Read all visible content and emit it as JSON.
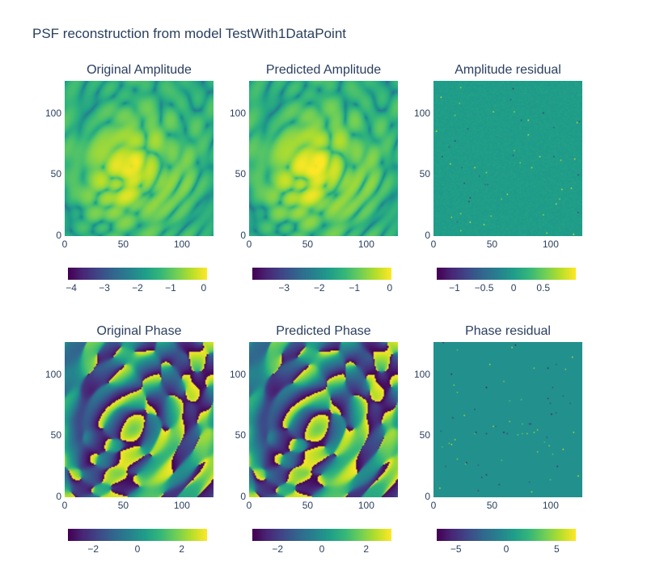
{
  "title": "PSF reconstruction from model TestWith1DataPoint",
  "colors": {
    "text": "#2a3f5f",
    "viridis": [
      "#440154",
      "#482878",
      "#3e4989",
      "#31688e",
      "#26828e",
      "#1f9e89",
      "#35b779",
      "#6ece58",
      "#b5de2b",
      "#fde725"
    ]
  },
  "chart_data": [
    {
      "type": "heatmap",
      "title": "Original Amplitude",
      "kind": "amplitude",
      "xlim": [
        0,
        127
      ],
      "ylim": [
        0,
        127
      ],
      "xticks": [
        0,
        50,
        100
      ],
      "yticks": [
        0,
        50,
        100
      ],
      "colorbar": {
        "range": [
          -4.1,
          0.1
        ],
        "ticks": [
          -4,
          -3,
          -2,
          -1,
          0
        ],
        "labels": [
          "−4",
          "−3",
          "−2",
          "−1",
          "0"
        ]
      }
    },
    {
      "type": "heatmap",
      "title": "Predicted Amplitude",
      "kind": "amplitude",
      "xlim": [
        0,
        127
      ],
      "ylim": [
        0,
        127
      ],
      "xticks": [
        0,
        50,
        100
      ],
      "yticks": [
        0,
        50,
        100
      ],
      "colorbar": {
        "range": [
          -3.9,
          0.05
        ],
        "ticks": [
          -3,
          -2,
          -1,
          0
        ],
        "labels": [
          "−3",
          "−2",
          "−1",
          "0"
        ]
      }
    },
    {
      "type": "heatmap",
      "title": "Amplitude residual",
      "kind": "residual_amp",
      "xlim": [
        0,
        127
      ],
      "ylim": [
        0,
        127
      ],
      "xticks": [
        0,
        50,
        100
      ],
      "yticks": [
        0,
        50,
        100
      ],
      "colorbar": {
        "range": [
          -1.3,
          1.05
        ],
        "ticks": [
          -1,
          -0.5,
          0,
          0.5
        ],
        "labels": [
          "−1",
          "−0.5",
          "0",
          "0.5"
        ]
      }
    },
    {
      "type": "heatmap",
      "title": "Original Phase",
      "kind": "phase",
      "xlim": [
        0,
        127
      ],
      "ylim": [
        0,
        127
      ],
      "xticks": [
        0,
        50,
        100
      ],
      "yticks": [
        0,
        50,
        100
      ],
      "colorbar": {
        "range": [
          -3.1416,
          3.1416
        ],
        "ticks": [
          -2,
          0,
          2
        ],
        "labels": [
          "−2",
          "0",
          "2"
        ]
      }
    },
    {
      "type": "heatmap",
      "title": "Predicted Phase",
      "kind": "phase",
      "xlim": [
        0,
        127
      ],
      "ylim": [
        0,
        127
      ],
      "xticks": [
        0,
        50,
        100
      ],
      "yticks": [
        0,
        50,
        100
      ],
      "colorbar": {
        "range": [
          -3.1416,
          3.1416
        ],
        "ticks": [
          -2,
          0,
          2
        ],
        "labels": [
          "−2",
          "0",
          "2"
        ]
      }
    },
    {
      "type": "heatmap",
      "title": "Phase residual",
      "kind": "residual_phase",
      "xlim": [
        0,
        127
      ],
      "ylim": [
        0,
        127
      ],
      "xticks": [
        0,
        50,
        100
      ],
      "yticks": [
        0,
        50,
        100
      ],
      "colorbar": {
        "range": [
          -6.9,
          6.9
        ],
        "ticks": [
          -5,
          0,
          5
        ],
        "labels": [
          "−5",
          "0",
          "5"
        ]
      }
    }
  ]
}
